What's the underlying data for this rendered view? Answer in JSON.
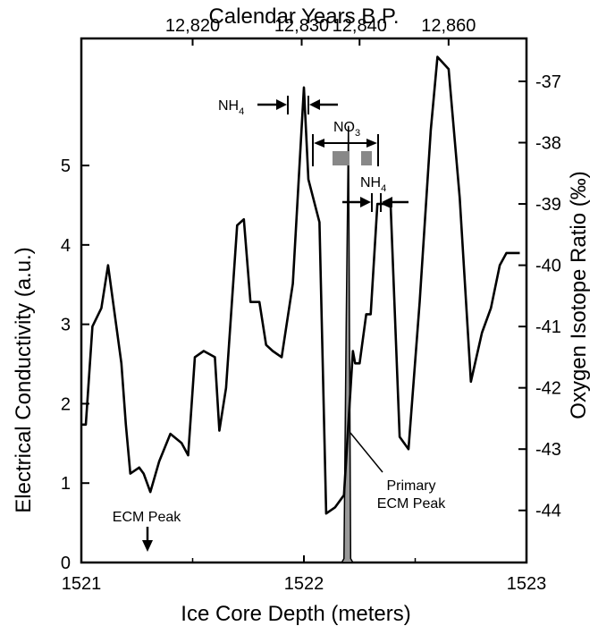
{
  "chart_data": {
    "type": "line",
    "x_axis": {
      "label": "Ice Core Depth  (meters)",
      "range": [
        1521,
        1523
      ],
      "ticks": [
        "1521",
        "1522",
        "1523"
      ]
    },
    "top_axis": {
      "label": "Calendar Years  B.P.",
      "ticks": [
        {
          "depth": 1521.5,
          "label": "12,820"
        },
        {
          "depth": 1521.99,
          "label": "12,830"
        },
        {
          "depth": 1522.25,
          "label": "12,840"
        },
        {
          "depth": 1522.65,
          "label": "12,860"
        }
      ]
    },
    "y_left": {
      "label": "Electrical Conductivity   (a.u.)",
      "range": [
        0,
        6.6
      ],
      "ticks": [
        "0",
        "1",
        "2",
        "3",
        "4",
        "5"
      ]
    },
    "y_right": {
      "label": "Oxygen Isotope Ratio   (‰)",
      "range": [
        -44.85,
        -36.3
      ],
      "ticks": [
        "-37",
        "-38",
        "-39",
        "-40",
        "-41",
        "-42",
        "-43",
        "-44"
      ]
    },
    "oxygen_isotope_series": {
      "x": [
        1521.0,
        1521.02,
        1521.05,
        1521.09,
        1521.12,
        1521.18,
        1521.2,
        1521.22,
        1521.26,
        1521.28,
        1521.31,
        1521.35,
        1521.4,
        1521.45,
        1521.48,
        1521.51,
        1521.55,
        1521.6,
        1521.62,
        1521.65,
        1521.7,
        1521.73,
        1521.76,
        1521.8,
        1521.83,
        1521.86,
        1521.9,
        1521.95,
        1522.0,
        1522.02,
        1522.07,
        1522.1,
        1522.14,
        1522.18,
        1522.22,
        1522.23,
        1522.25,
        1522.28,
        1522.3,
        1522.33,
        1522.36,
        1522.39,
        1522.43,
        1522.47,
        1522.52,
        1522.57,
        1522.6,
        1522.65,
        1522.7,
        1522.75,
        1522.8,
        1522.84,
        1522.88,
        1522.91,
        1522.94,
        1522.97
      ],
      "y": [
        -42.6,
        -42.6,
        -41.0,
        -40.7,
        -40.0,
        -41.6,
        -42.6,
        -43.4,
        -43.3,
        -43.4,
        -43.7,
        -43.2,
        -42.75,
        -42.9,
        -43.1,
        -41.5,
        -41.4,
        -41.5,
        -42.7,
        -42.0,
        -39.35,
        -39.25,
        -40.6,
        -40.6,
        -41.3,
        -41.4,
        -41.5,
        -40.3,
        -37.1,
        -38.6,
        -39.3,
        -44.05,
        -43.95,
        -43.75,
        -41.4,
        -41.6,
        -41.6,
        -40.8,
        -40.8,
        -39.0,
        -39.0,
        -39.05,
        -42.8,
        -43.0,
        -40.6,
        -37.8,
        -36.6,
        -36.8,
        -38.9,
        -41.9,
        -41.1,
        -40.7,
        -40.0,
        -39.8,
        -39.8,
        -39.8
      ]
    },
    "ecm_series": {
      "x": [
        1522.17,
        1522.18,
        1522.19,
        1522.2,
        1522.21,
        1522.22
      ],
      "y": [
        0,
        0.05,
        3.0,
        5.5,
        0.05,
        0
      ]
    },
    "annotations": {
      "nh4_upper": {
        "text": "NH",
        "sub": "4"
      },
      "no3": {
        "text": "NO",
        "sub": "3"
      },
      "nh4_lower": {
        "text": "NH",
        "sub": "4"
      },
      "primary_line1": "Primary",
      "primary_line2": "ECM Peak",
      "ecm_peak": "ECM Peak"
    },
    "colors": {
      "line": "#000000",
      "fill": "#999999",
      "marker": "#888888"
    },
    "grid": false
  }
}
